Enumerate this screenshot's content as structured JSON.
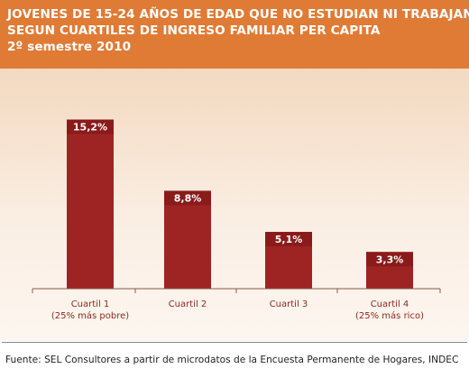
{
  "header": {
    "line1": "JOVENES DE 15-24 AÑOS DE EDAD QUE NO ESTUDIAN NI TRABAJAN",
    "line2": "SEGUN CUARTILES DE INGRESO FAMILIAR PER CAPITA",
    "line3": "2º semestre 2010"
  },
  "footer": {
    "source": "Fuente: SEL Consultores a partir de microdatos de la Encuesta Permanente de Hogares, INDEC"
  },
  "colors": {
    "header_bg": "#e07b35",
    "bar": "#9e2424",
    "bar_top": "#8a1b1b",
    "label_text": "#8b2a1e",
    "axis": "#8a5a45"
  },
  "chart_data": {
    "type": "bar",
    "categories": [
      [
        "Cuartil 1",
        "(25% más pobre)"
      ],
      [
        "Cuartil 2"
      ],
      [
        "Cuartil 3"
      ],
      [
        "Cuartil 4",
        "(25% más rico)"
      ]
    ],
    "values": [
      15.2,
      8.8,
      5.1,
      3.3
    ],
    "data_labels": [
      "15,2%",
      "8,8%",
      "5,1%",
      "3,3%"
    ],
    "unit": "%",
    "ylim": [
      0,
      18
    ],
    "grid": false,
    "legend": "none"
  }
}
